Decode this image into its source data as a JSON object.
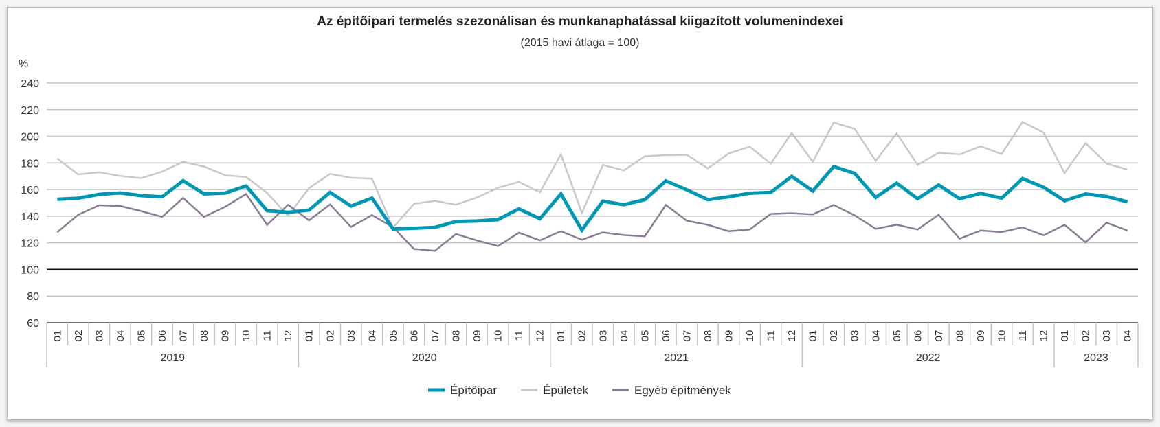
{
  "chart_data": {
    "type": "line",
    "title": "Az építőipari termelés szezonálisan és munkanaphatással kiigazított volumenindexei",
    "subtitle": "(2015 havi átlaga = 100)",
    "ylabel": "%",
    "xlabel": "",
    "ylim": [
      60,
      240
    ],
    "yticks": [
      60,
      80,
      100,
      120,
      140,
      160,
      180,
      200,
      220,
      240
    ],
    "reference_line": 100,
    "grid": true,
    "legend_position": "bottom",
    "years": [
      {
        "label": "2019",
        "months": 12
      },
      {
        "label": "2020",
        "months": 12
      },
      {
        "label": "2021",
        "months": 12
      },
      {
        "label": "2022",
        "months": 12
      },
      {
        "label": "2023",
        "months": 4
      }
    ],
    "months": [
      "01",
      "02",
      "03",
      "04",
      "05",
      "06",
      "07",
      "08",
      "09",
      "10",
      "11",
      "12",
      "01",
      "02",
      "03",
      "04",
      "05",
      "06",
      "07",
      "08",
      "09",
      "10",
      "11",
      "12",
      "01",
      "02",
      "03",
      "04",
      "05",
      "06",
      "07",
      "08",
      "09",
      "10",
      "11",
      "12",
      "01",
      "02",
      "03",
      "04",
      "05",
      "06",
      "07",
      "08",
      "09",
      "10",
      "11",
      "12",
      "01",
      "02",
      "03",
      "04"
    ],
    "series": [
      {
        "name": "Építőipar",
        "color": "#0097b2",
        "values": [
          152.7,
          153.5,
          156.4,
          157.5,
          155.4,
          154.6,
          166.6,
          156.7,
          157.3,
          162.7,
          144.1,
          142.9,
          144.6,
          157.9,
          147.6,
          153.6,
          130.4,
          130.9,
          131.6,
          136.0,
          136.4,
          137.4,
          145.5,
          138.1,
          156.7,
          129.5,
          151.3,
          148.6,
          152.4,
          166.5,
          159.8,
          152.4,
          154.6,
          157.2,
          157.9,
          169.9,
          158.9,
          177.3,
          172.2,
          154.1,
          164.8,
          153.1,
          163.4,
          153.1,
          157.1,
          153.5,
          168.2,
          161.7,
          151.6,
          156.7,
          154.8,
          150.7
        ]
      },
      {
        "name": "Épületek",
        "color": "#c8c8c8",
        "values": [
          183.3,
          171.4,
          173.0,
          170.2,
          168.5,
          173.5,
          180.9,
          177.3,
          170.8,
          169.4,
          157.5,
          140.3,
          161.0,
          171.8,
          168.9,
          168.2,
          131.4,
          149.3,
          151.5,
          148.6,
          154.0,
          161.3,
          165.8,
          157.9,
          186.5,
          142.4,
          178.5,
          174.4,
          185.0,
          185.9,
          186.1,
          175.9,
          187.2,
          192.2,
          179.5,
          202.5,
          180.9,
          210.4,
          205.6,
          181.5,
          202.3,
          178.5,
          187.7,
          186.4,
          192.5,
          186.7,
          210.8,
          202.8,
          172.4,
          194.9,
          179.5,
          175.0
        ]
      },
      {
        "name": "Egyéb építmények",
        "color": "#8a7a93",
        "values": [
          128.0,
          141.0,
          148.2,
          147.7,
          143.8,
          139.5,
          153.7,
          139.5,
          147.0,
          156.7,
          133.5,
          148.6,
          136.9,
          148.8,
          131.9,
          140.8,
          131.7,
          115.4,
          114.0,
          126.6,
          121.8,
          117.5,
          127.6,
          121.8,
          128.7,
          122.3,
          127.8,
          125.8,
          124.9,
          148.4,
          136.6,
          133.5,
          128.7,
          130.0,
          141.7,
          142.2,
          141.4,
          148.4,
          140.6,
          130.5,
          133.6,
          130.0,
          141.0,
          123.1,
          129.2,
          128.1,
          131.6,
          125.6,
          133.5,
          120.4,
          135.1,
          129.2
        ]
      }
    ]
  }
}
